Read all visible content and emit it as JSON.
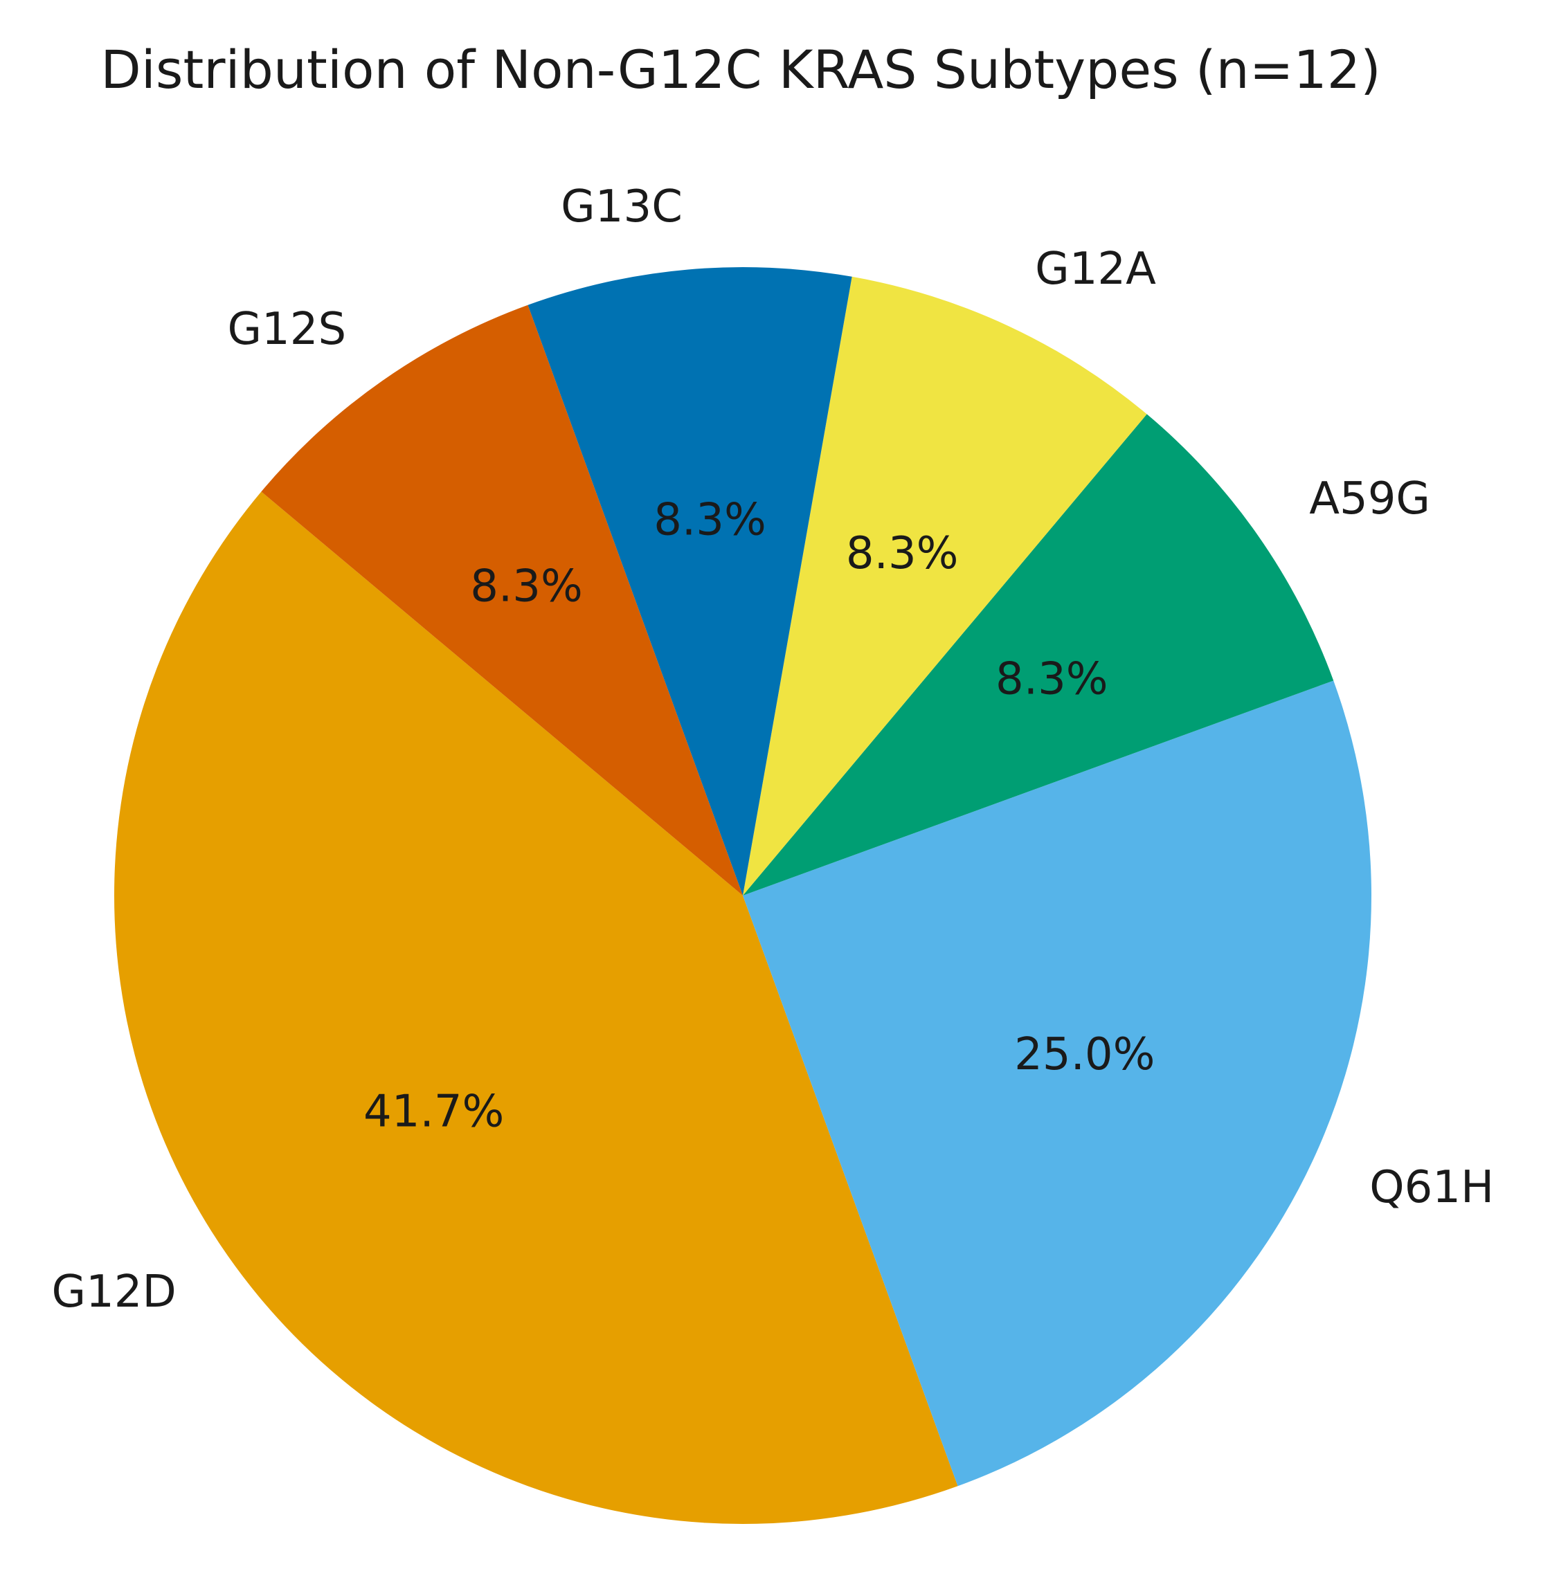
{
  "chart_data": {
    "type": "pie",
    "title": "Distribution of Non-G12C KRAS Subtypes (n=12)",
    "slices": [
      {
        "label": "G12D",
        "value": 5,
        "pct_text": "41.7%",
        "color": "#E69F00"
      },
      {
        "label": "Q61H",
        "value": 3,
        "pct_text": "25.0%",
        "color": "#56B4E9"
      },
      {
        "label": "A59G",
        "value": 1,
        "pct_text": "8.3%",
        "color": "#009E73"
      },
      {
        "label": "G12A",
        "value": 1,
        "pct_text": "8.3%",
        "color": "#F0E442"
      },
      {
        "label": "G13C",
        "value": 1,
        "pct_text": "8.3%",
        "color": "#0072B2"
      },
      {
        "label": "G12S",
        "value": 1,
        "pct_text": "8.3%",
        "color": "#D55E00"
      }
    ],
    "start_angle_deg": 140,
    "direction": "counterclockwise",
    "legend": "none"
  }
}
